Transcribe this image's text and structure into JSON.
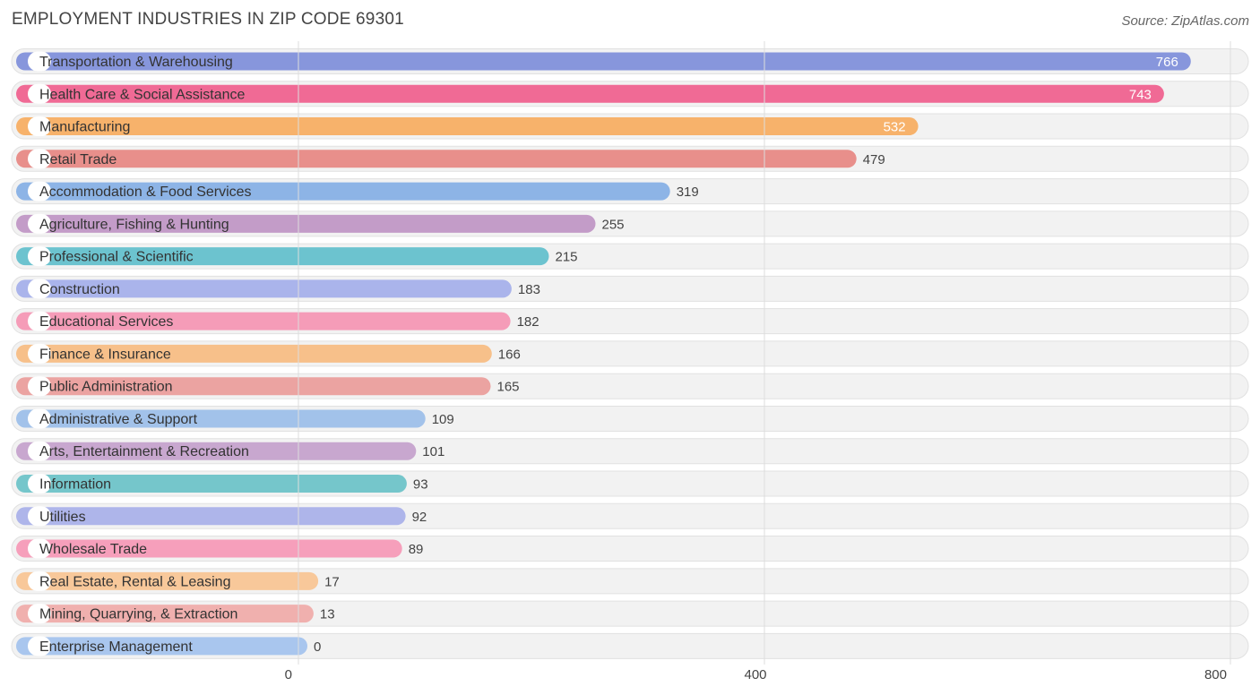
{
  "title": "EMPLOYMENT INDUSTRIES IN ZIP CODE 69301",
  "source": "Source: ZipAtlas.com",
  "chart_data": {
    "type": "bar",
    "orientation": "horizontal",
    "title": "EMPLOYMENT INDUSTRIES IN ZIP CODE 69301",
    "xlabel": "",
    "ylabel": "",
    "xlim": [
      0,
      800
    ],
    "xticks": [
      0,
      400,
      800
    ],
    "grid": true,
    "categories": [
      "Transportation & Warehousing",
      "Health Care & Social Assistance",
      "Manufacturing",
      "Retail Trade",
      "Accommodation & Food Services",
      "Agriculture, Fishing & Hunting",
      "Professional & Scientific",
      "Construction",
      "Educational Services",
      "Finance & Insurance",
      "Public Administration",
      "Administrative & Support",
      "Arts, Entertainment & Recreation",
      "Information",
      "Utilities",
      "Wholesale Trade",
      "Real Estate, Rental & Leasing",
      "Mining, Quarrying, & Extraction",
      "Enterprise Management"
    ],
    "values": [
      766,
      743,
      532,
      479,
      319,
      255,
      215,
      183,
      182,
      166,
      165,
      109,
      101,
      93,
      92,
      89,
      17,
      13,
      0
    ],
    "colors": [
      "#8796dc",
      "#f06a95",
      "#f7b26b",
      "#e88f8b",
      "#8db4e6",
      "#c39cc8",
      "#6cc3cf",
      "#aab4eb",
      "#f59cb8",
      "#f7c08a",
      "#eba3a1",
      "#a2c2ea",
      "#c8a7cf",
      "#75c6cb",
      "#aeb5ea",
      "#f69fbb",
      "#f8c89a",
      "#f0b0ae",
      "#a9c6ee"
    ],
    "inside_label_color": "#ffffff",
    "outside_label_color": "#444444"
  }
}
